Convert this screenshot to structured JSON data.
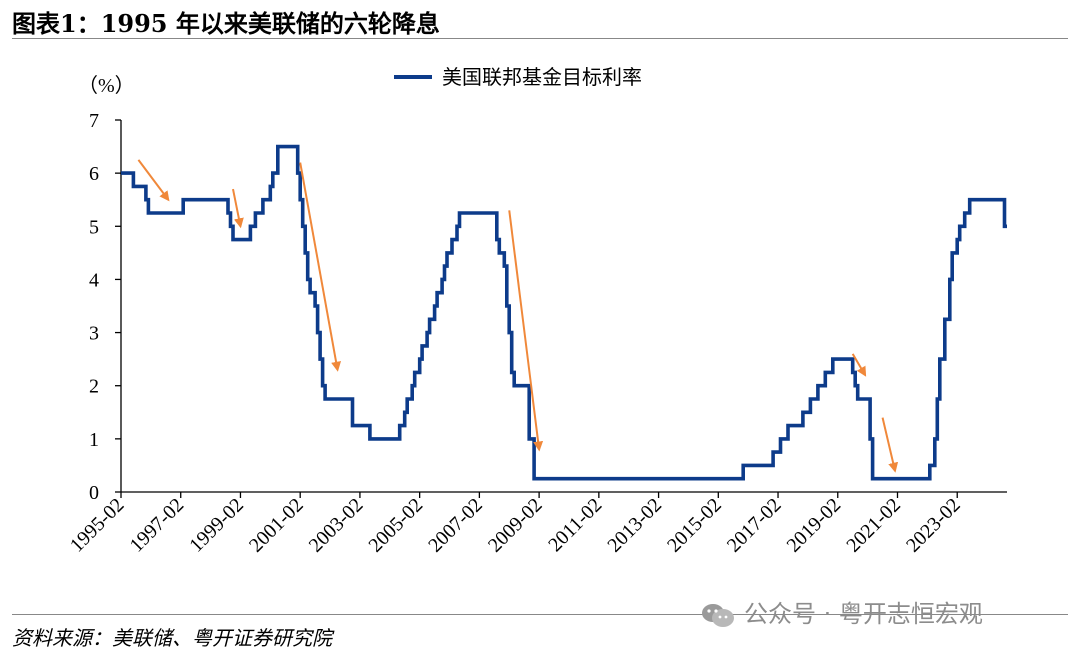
{
  "title": "图表1：1995 年以来美联储的六轮降息",
  "source": "资料来源：美联储、粤开证券研究院",
  "watermark": "公众号 · 粤开志恒宏观",
  "colors": {
    "line": "#0d3b8a",
    "arrow": "#f0883a",
    "axis": "#000000"
  },
  "chart_data": {
    "type": "line",
    "unit_label": "（%）",
    "ylim": [
      0,
      7
    ],
    "yticks": [
      0,
      1,
      2,
      3,
      4,
      5,
      6,
      7
    ],
    "xticks": [
      "1995-02",
      "1997-02",
      "1999-02",
      "2001-02",
      "2003-02",
      "2005-02",
      "2007-02",
      "2009-02",
      "2011-02",
      "2013-02",
      "2015-02",
      "2017-02",
      "2019-02",
      "2021-02",
      "2023-02"
    ],
    "xlim": [
      "1995-02",
      "2024-10"
    ],
    "series": [
      {
        "name": "美国联邦基金目标利率",
        "step": true,
        "points": [
          [
            "1995-02",
            6.0
          ],
          [
            "1995-07",
            5.75
          ],
          [
            "1995-12",
            5.5
          ],
          [
            "1996-01",
            5.25
          ],
          [
            "1997-03",
            5.5
          ],
          [
            "1998-09",
            5.25
          ],
          [
            "1998-10",
            5.0
          ],
          [
            "1998-11",
            4.75
          ],
          [
            "1999-06",
            5.0
          ],
          [
            "1999-08",
            5.25
          ],
          [
            "1999-11",
            5.5
          ],
          [
            "2000-02",
            5.75
          ],
          [
            "2000-03",
            6.0
          ],
          [
            "2000-05",
            6.5
          ],
          [
            "2001-01",
            6.0
          ],
          [
            "2001-02",
            5.5
          ],
          [
            "2001-03",
            5.0
          ],
          [
            "2001-04",
            4.5
          ],
          [
            "2001-05",
            4.0
          ],
          [
            "2001-06",
            3.75
          ],
          [
            "2001-08",
            3.5
          ],
          [
            "2001-09",
            3.0
          ],
          [
            "2001-10",
            2.5
          ],
          [
            "2001-11",
            2.0
          ],
          [
            "2001-12",
            1.75
          ],
          [
            "2002-11",
            1.25
          ],
          [
            "2003-06",
            1.0
          ],
          [
            "2004-06",
            1.25
          ],
          [
            "2004-08",
            1.5
          ],
          [
            "2004-09",
            1.75
          ],
          [
            "2004-11",
            2.0
          ],
          [
            "2004-12",
            2.25
          ],
          [
            "2005-02",
            2.5
          ],
          [
            "2005-03",
            2.75
          ],
          [
            "2005-05",
            3.0
          ],
          [
            "2005-06",
            3.25
          ],
          [
            "2005-08",
            3.5
          ],
          [
            "2005-09",
            3.75
          ],
          [
            "2005-11",
            4.0
          ],
          [
            "2005-12",
            4.25
          ],
          [
            "2006-01",
            4.5
          ],
          [
            "2006-03",
            4.75
          ],
          [
            "2006-05",
            5.0
          ],
          [
            "2006-06",
            5.25
          ],
          [
            "2007-09",
            4.75
          ],
          [
            "2007-10",
            4.5
          ],
          [
            "2007-12",
            4.25
          ],
          [
            "2008-01",
            3.5
          ],
          [
            "2008-02",
            3.0
          ],
          [
            "2008-03",
            2.25
          ],
          [
            "2008-04",
            2.0
          ],
          [
            "2008-10",
            1.0
          ],
          [
            "2008-12",
            0.25
          ],
          [
            "2015-12",
            0.5
          ],
          [
            "2016-12",
            0.75
          ],
          [
            "2017-03",
            1.0
          ],
          [
            "2017-06",
            1.25
          ],
          [
            "2017-12",
            1.5
          ],
          [
            "2018-03",
            1.75
          ],
          [
            "2018-06",
            2.0
          ],
          [
            "2018-09",
            2.25
          ],
          [
            "2018-12",
            2.5
          ],
          [
            "2019-08",
            2.25
          ],
          [
            "2019-09",
            2.0
          ],
          [
            "2019-10",
            1.75
          ],
          [
            "2020-03",
            1.0
          ],
          [
            "2020-04",
            0.25
          ],
          [
            "2022-03",
            0.5
          ],
          [
            "2022-05",
            1.0
          ],
          [
            "2022-06",
            1.75
          ],
          [
            "2022-07",
            2.5
          ],
          [
            "2022-09",
            3.25
          ],
          [
            "2022-11",
            4.0
          ],
          [
            "2022-12",
            4.5
          ],
          [
            "2023-02",
            4.75
          ],
          [
            "2023-03",
            5.0
          ],
          [
            "2023-05",
            5.25
          ],
          [
            "2023-07",
            5.5
          ],
          [
            "2024-09",
            5.0
          ],
          [
            "2024-10",
            5.0
          ]
        ]
      }
    ],
    "annotations": [
      {
        "type": "arrow",
        "from": [
          "1995-09",
          6.25
        ],
        "to": [
          "1996-09",
          5.5
        ]
      },
      {
        "type": "arrow",
        "from": [
          "1998-11",
          5.7
        ],
        "to": [
          "1999-02",
          5.0
        ]
      },
      {
        "type": "arrow",
        "from": [
          "2001-02",
          6.2
        ],
        "to": [
          "2002-05",
          2.3
        ]
      },
      {
        "type": "arrow",
        "from": [
          "2008-02",
          5.3
        ],
        "to": [
          "2009-02",
          0.8
        ]
      },
      {
        "type": "arrow",
        "from": [
          "2019-08",
          2.6
        ],
        "to": [
          "2020-01",
          2.2
        ]
      },
      {
        "type": "arrow",
        "from": [
          "2020-08",
          1.4
        ],
        "to": [
          "2021-01",
          0.4
        ]
      }
    ],
    "legend_position": "top-center",
    "grid": false
  }
}
